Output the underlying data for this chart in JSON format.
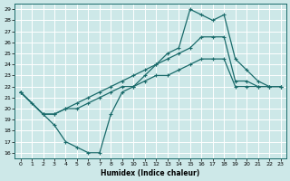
{
  "xlabel": "Humidex (Indice chaleur)",
  "background_color": "#cde8e8",
  "grid_color": "#ffffff",
  "line_color": "#1a6b6b",
  "xlim": [
    -0.5,
    23.5
  ],
  "ylim": [
    15.5,
    29.5
  ],
  "yticks": [
    16,
    17,
    18,
    19,
    20,
    21,
    22,
    23,
    24,
    25,
    26,
    27,
    28,
    29
  ],
  "xticks": [
    0,
    1,
    2,
    3,
    4,
    5,
    6,
    7,
    8,
    9,
    10,
    11,
    12,
    13,
    14,
    15,
    16,
    17,
    18,
    19,
    20,
    21,
    22,
    23
  ],
  "line1_x": [
    0,
    1,
    2,
    3,
    4,
    5,
    6,
    7,
    8,
    9,
    10,
    11,
    12,
    13,
    14,
    15,
    16,
    17,
    18,
    19,
    20,
    21,
    22,
    23
  ],
  "line1_y": [
    21.5,
    20.5,
    19.5,
    18.5,
    17.0,
    16.5,
    16.0,
    16.0,
    19.5,
    21.5,
    22.0,
    23.0,
    24.0,
    25.0,
    25.5,
    29.0,
    28.5,
    28.0,
    28.5,
    24.5,
    23.5,
    22.5,
    22.0,
    22.0
  ],
  "line2_x": [
    0,
    2,
    3,
    4,
    5,
    6,
    7,
    8,
    9,
    10,
    11,
    12,
    13,
    14,
    15,
    16,
    17,
    18,
    19,
    20,
    21,
    22,
    23
  ],
  "line2_y": [
    21.5,
    19.5,
    19.5,
    20.0,
    20.5,
    21.0,
    21.5,
    22.0,
    22.5,
    23.0,
    23.5,
    24.0,
    24.5,
    25.0,
    25.5,
    26.5,
    26.5,
    26.5,
    22.5,
    22.5,
    22.0,
    22.0,
    22.0
  ],
  "line3_x": [
    0,
    2,
    3,
    4,
    5,
    6,
    7,
    8,
    9,
    10,
    11,
    12,
    13,
    14,
    15,
    16,
    17,
    18,
    19,
    20,
    21,
    22,
    23
  ],
  "line3_y": [
    21.5,
    19.5,
    19.5,
    20.0,
    20.0,
    20.5,
    21.0,
    21.5,
    22.0,
    22.0,
    22.5,
    23.0,
    23.0,
    23.5,
    24.0,
    24.5,
    24.5,
    24.5,
    22.0,
    22.0,
    22.0,
    22.0,
    22.0
  ]
}
